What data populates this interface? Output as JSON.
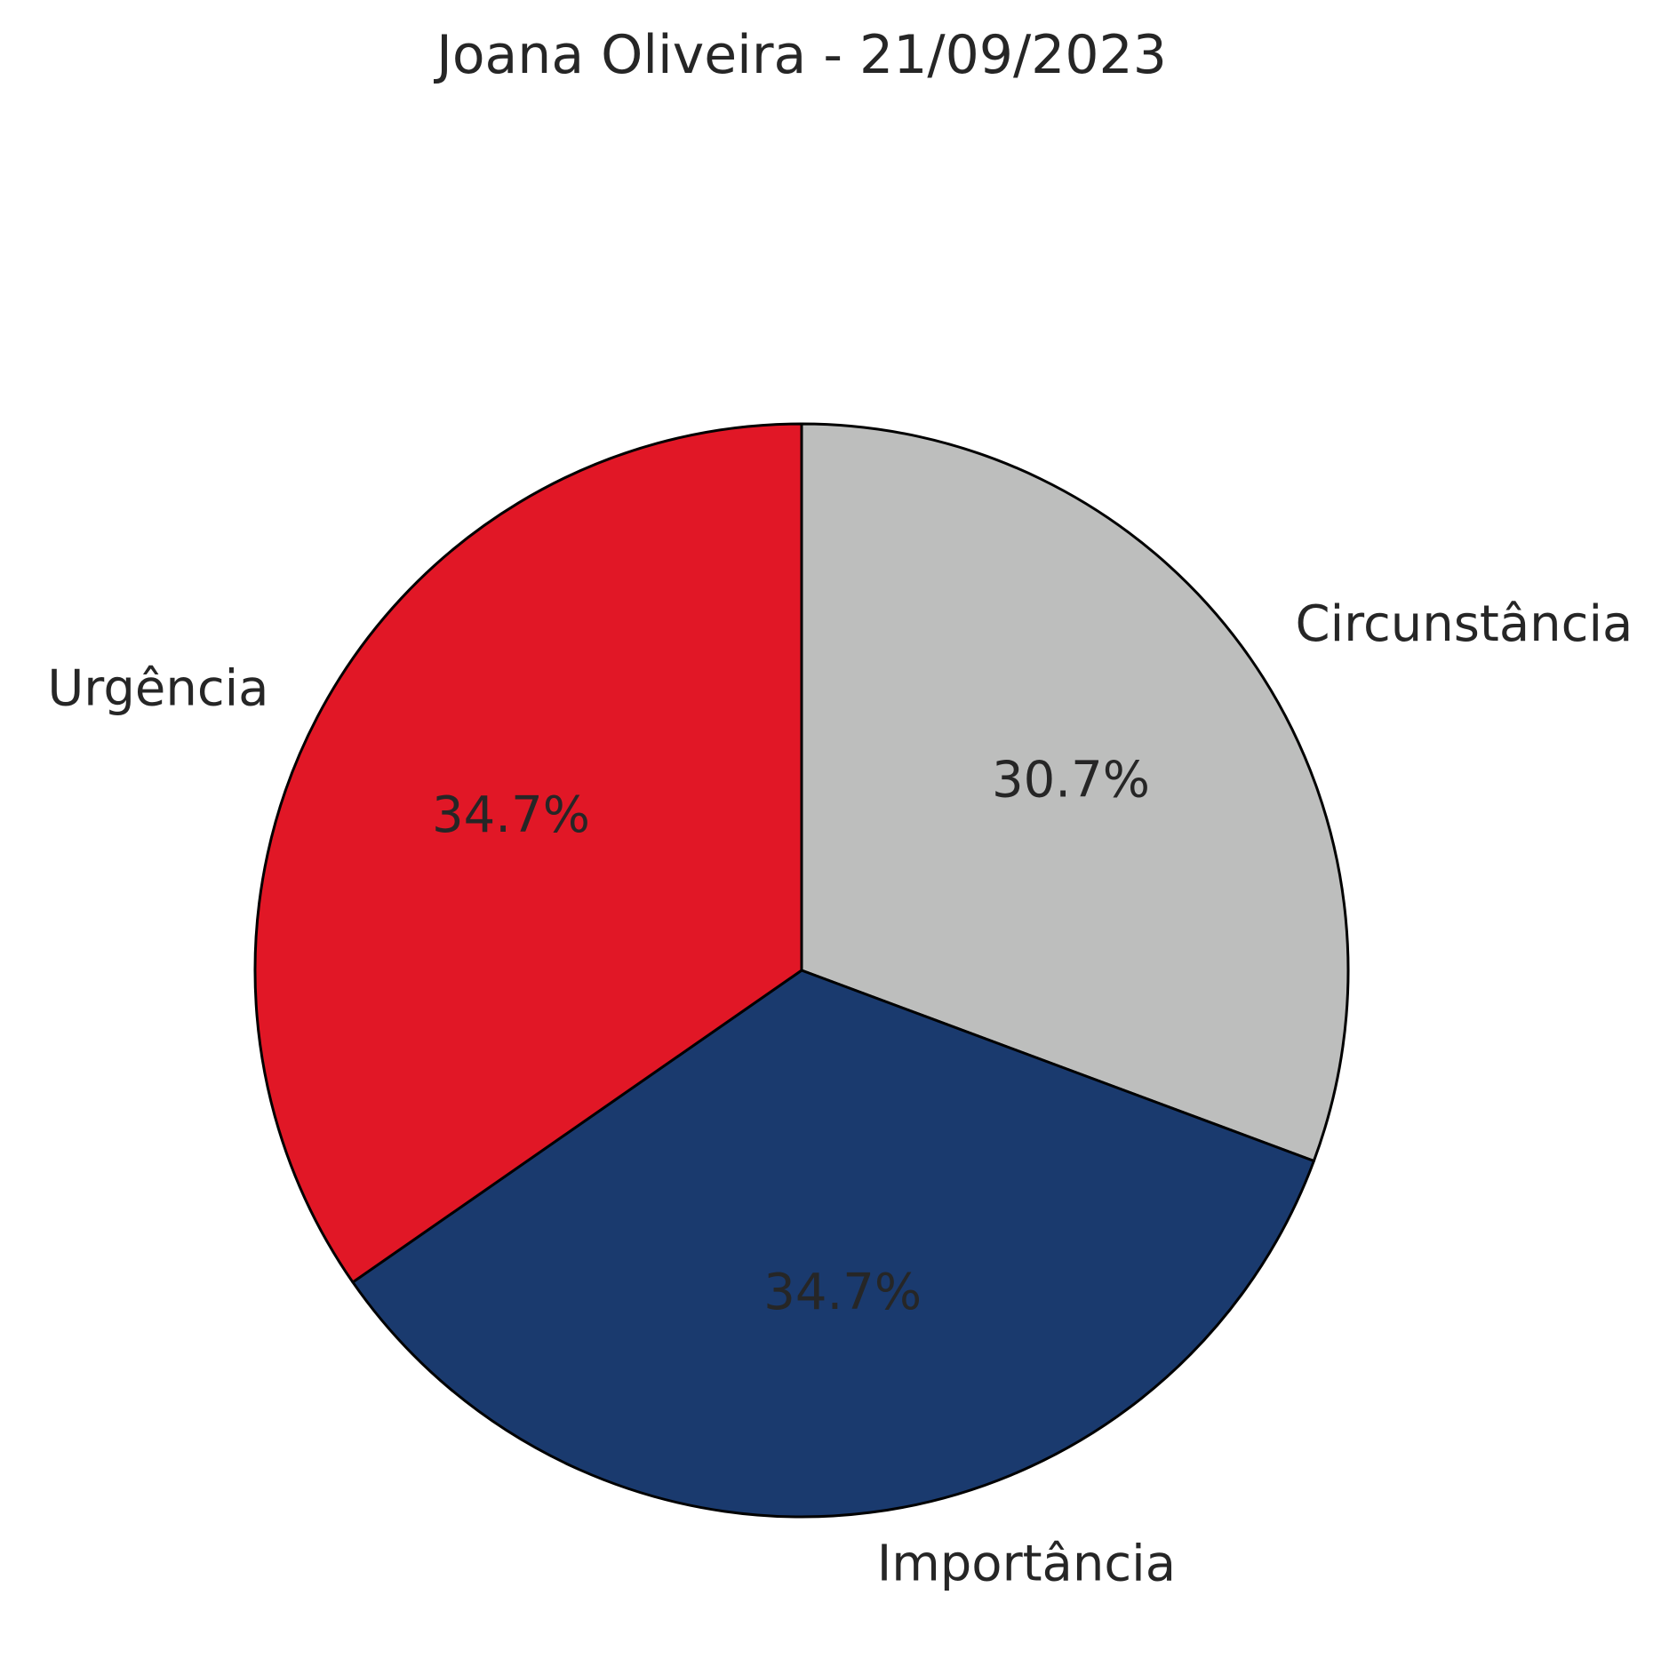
{
  "chart_data": {
    "type": "pie",
    "title": "Joana Oliveira - 21/09/2023",
    "start_angle_deg": 90,
    "direction": "clockwise",
    "slices": [
      {
        "label": "Circunstância",
        "value": 30.7,
        "pct_label": "30.7%",
        "color": "#bdbebd"
      },
      {
        "label": "Importância",
        "value": 34.7,
        "pct_label": "34.7%",
        "color": "#1a3a6e"
      },
      {
        "label": "Urgência",
        "value": 34.7,
        "pct_label": "34.7%",
        "color": "#e11726"
      }
    ],
    "edge_color": "#000000"
  }
}
